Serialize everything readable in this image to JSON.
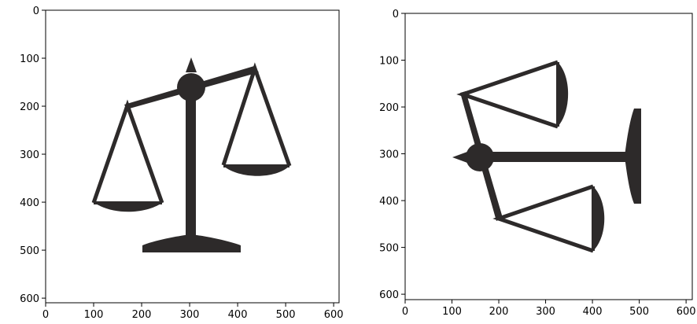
{
  "panels": [
    {
      "name": "left",
      "image": "scale-upright-icon",
      "x_ticks": [
        "0",
        "100",
        "200",
        "300",
        "400",
        "500",
        "600"
      ],
      "y_ticks": [
        "0",
        "100",
        "200",
        "300",
        "400",
        "500",
        "600"
      ]
    },
    {
      "name": "right",
      "image": "scale-rotated-icon",
      "x_ticks": [
        "0",
        "100",
        "200",
        "300",
        "400",
        "500",
        "600"
      ],
      "y_ticks": [
        "0",
        "100",
        "200",
        "300",
        "400",
        "500",
        "600"
      ]
    }
  ],
  "colors": {
    "ink": "#2d2a2a",
    "axis": "#000000",
    "background": "#ffffff"
  }
}
